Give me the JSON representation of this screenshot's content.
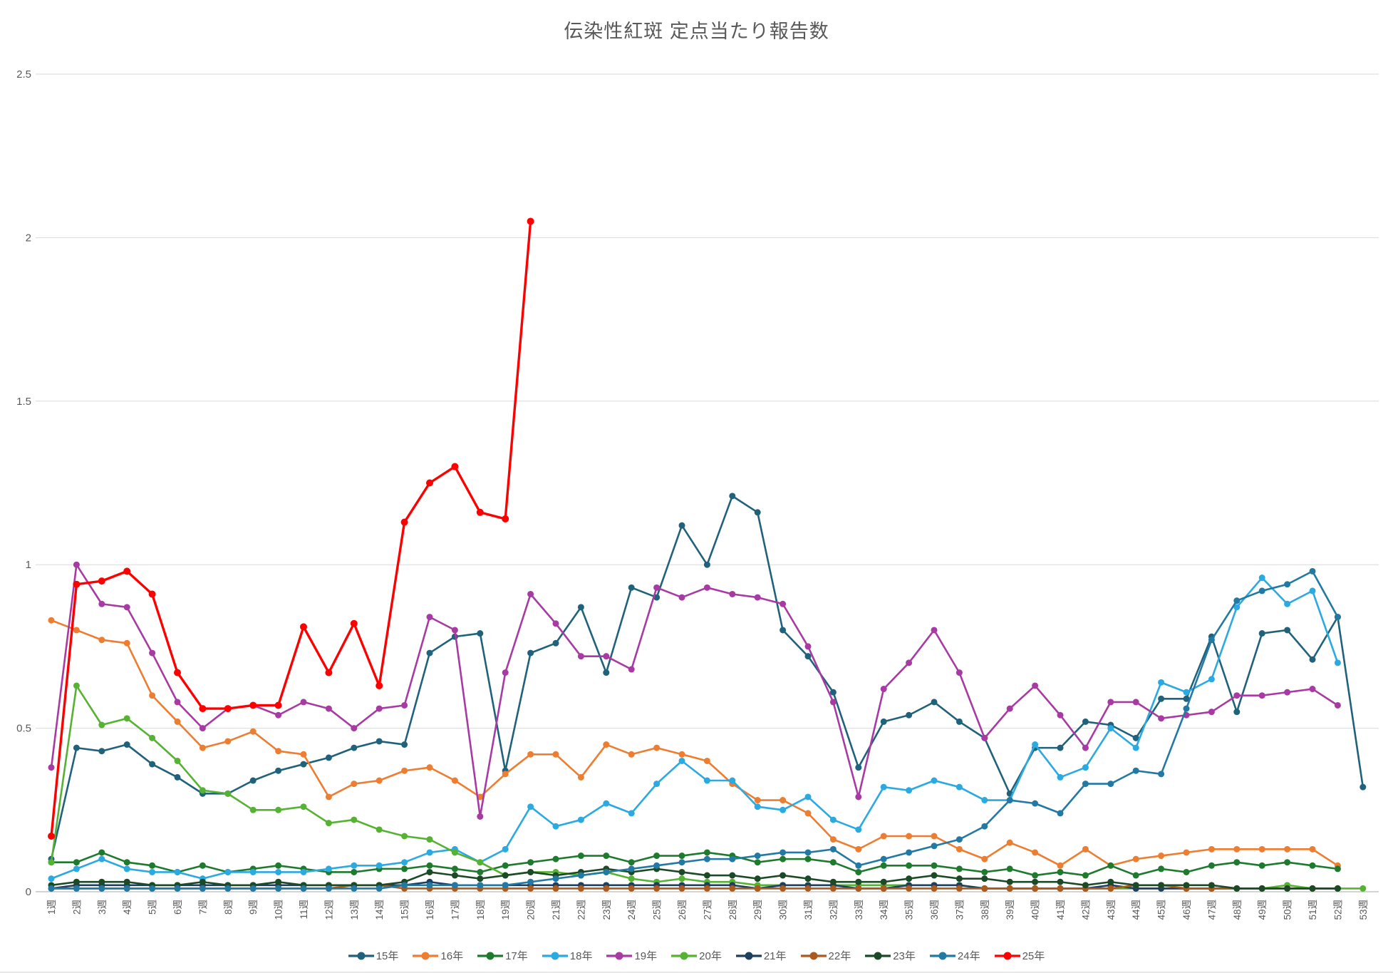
{
  "chart_data": {
    "type": "line",
    "title": "伝染性紅斑 定点当たり報告数",
    "xlabel": "",
    "ylabel": "",
    "ylim": [
      0,
      2.5
    ],
    "grid": true,
    "legend_position": "bottom",
    "y_ticks": [
      "0",
      "0.5",
      "1",
      "1.5",
      "2",
      "2.5"
    ],
    "x_labels": [
      "1週",
      "2週",
      "3週",
      "4週",
      "5週",
      "6週",
      "7週",
      "8週",
      "9週",
      "10週",
      "11週",
      "12週",
      "13週",
      "14週",
      "15週",
      "16週",
      "17週",
      "18週",
      "19週",
      "20週",
      "21週",
      "22週",
      "23週",
      "24週",
      "25週",
      "26週",
      "27週",
      "28週",
      "29週",
      "30週",
      "31週",
      "32週",
      "33週",
      "34週",
      "35週",
      "36週",
      "37週",
      "38週",
      "39週",
      "40週",
      "41週",
      "42週",
      "43週",
      "44週",
      "45週",
      "46週",
      "47週",
      "48週",
      "49週",
      "50週",
      "51週",
      "52週",
      "53週"
    ],
    "colors": {
      "grid": "#D9D9D9",
      "axis": "#C6C6C6",
      "text": "#595959"
    },
    "series": [
      {
        "name": "15年",
        "color": "#20627C",
        "values": [
          0.1,
          0.44,
          0.43,
          0.45,
          0.39,
          0.35,
          0.3,
          0.3,
          0.34,
          0.37,
          0.39,
          0.41,
          0.44,
          0.46,
          0.45,
          0.73,
          0.78,
          0.79,
          0.37,
          0.73,
          0.76,
          0.87,
          0.67,
          0.93,
          0.9,
          1.12,
          1.0,
          1.21,
          1.16,
          0.8,
          0.72,
          0.61,
          0.38,
          0.52,
          0.54,
          0.58,
          0.52,
          0.47,
          0.3,
          0.44,
          0.44,
          0.52,
          0.51,
          0.47,
          0.59,
          0.59,
          0.78,
          0.55,
          0.79,
          0.8,
          0.71,
          0.84,
          0.32
        ]
      },
      {
        "name": "16年",
        "color": "#ED7D31",
        "values": [
          0.83,
          0.8,
          0.77,
          0.76,
          0.6,
          0.52,
          0.44,
          0.46,
          0.49,
          0.43,
          0.42,
          0.29,
          0.33,
          0.34,
          0.37,
          0.38,
          0.34,
          0.29,
          0.36,
          0.42,
          0.42,
          0.35,
          0.45,
          0.42,
          0.44,
          0.42,
          0.4,
          0.33,
          0.28,
          0.28,
          0.24,
          0.16,
          0.13,
          0.17,
          0.17,
          0.17,
          0.13,
          0.1,
          0.15,
          0.12,
          0.08,
          0.13,
          0.08,
          0.1,
          0.11,
          0.12,
          0.13,
          0.13,
          0.13,
          0.13,
          0.13,
          0.08
        ]
      },
      {
        "name": "17年",
        "color": "#1E7A2D",
        "values": [
          0.09,
          0.09,
          0.12,
          0.09,
          0.08,
          0.06,
          0.08,
          0.06,
          0.07,
          0.08,
          0.07,
          0.06,
          0.06,
          0.07,
          0.07,
          0.08,
          0.07,
          0.06,
          0.08,
          0.09,
          0.1,
          0.11,
          0.11,
          0.09,
          0.11,
          0.11,
          0.12,
          0.11,
          0.09,
          0.1,
          0.1,
          0.09,
          0.06,
          0.08,
          0.08,
          0.08,
          0.07,
          0.06,
          0.07,
          0.05,
          0.06,
          0.05,
          0.08,
          0.05,
          0.07,
          0.06,
          0.08,
          0.09,
          0.08,
          0.09,
          0.08,
          0.07
        ]
      },
      {
        "name": "18年",
        "color": "#2BA9E1",
        "values": [
          0.04,
          0.07,
          0.1,
          0.07,
          0.06,
          0.06,
          0.04,
          0.06,
          0.06,
          0.06,
          0.06,
          0.07,
          0.08,
          0.08,
          0.09,
          0.12,
          0.13,
          0.09,
          0.13,
          0.26,
          0.2,
          0.22,
          0.27,
          0.24,
          0.33,
          0.4,
          0.34,
          0.34,
          0.26,
          0.25,
          0.29,
          0.22,
          0.19,
          0.32,
          0.31,
          0.34,
          0.32,
          0.28,
          0.28,
          0.45,
          0.35,
          0.38,
          0.5,
          0.44,
          0.64,
          0.61,
          0.65,
          0.87,
          0.96,
          0.88,
          0.92,
          0.7
        ]
      },
      {
        "name": "19年",
        "color": "#A83AA3",
        "values": [
          0.38,
          1.0,
          0.88,
          0.87,
          0.73,
          0.58,
          0.5,
          0.56,
          0.57,
          0.54,
          0.58,
          0.56,
          0.5,
          0.56,
          0.57,
          0.84,
          0.8,
          0.23,
          0.67,
          0.91,
          0.82,
          0.72,
          0.72,
          0.68,
          0.93,
          0.9,
          0.93,
          0.91,
          0.9,
          0.88,
          0.75,
          0.58,
          0.29,
          0.62,
          0.7,
          0.8,
          0.67,
          0.47,
          0.56,
          0.63,
          0.54,
          0.44,
          0.58,
          0.58,
          0.53,
          0.54,
          0.55,
          0.6,
          0.6,
          0.61,
          0.62,
          0.57
        ]
      },
      {
        "name": "20年",
        "color": "#56B232",
        "values": [
          0.09,
          0.63,
          0.51,
          0.53,
          0.47,
          0.4,
          0.31,
          0.3,
          0.25,
          0.25,
          0.26,
          0.21,
          0.22,
          0.19,
          0.17,
          0.16,
          0.12,
          0.09,
          0.05,
          0.06,
          0.06,
          0.05,
          0.06,
          0.04,
          0.03,
          0.04,
          0.03,
          0.03,
          0.02,
          0.02,
          0.02,
          0.02,
          0.02,
          0.02,
          0.02,
          0.02,
          0.02,
          0.01,
          0.01,
          0.01,
          0.01,
          0.01,
          0.01,
          0.01,
          0.01,
          0.01,
          0.01,
          0.01,
          0.01,
          0.02,
          0.01,
          0.01,
          0.01
        ]
      },
      {
        "name": "21年",
        "color": "#1F3F5F",
        "values": [
          0.01,
          0.02,
          0.02,
          0.02,
          0.02,
          0.02,
          0.02,
          0.02,
          0.02,
          0.02,
          0.02,
          0.02,
          0.02,
          0.02,
          0.02,
          0.03,
          0.02,
          0.02,
          0.02,
          0.02,
          0.02,
          0.02,
          0.02,
          0.02,
          0.02,
          0.02,
          0.02,
          0.02,
          0.01,
          0.02,
          0.02,
          0.02,
          0.01,
          0.01,
          0.02,
          0.02,
          0.02,
          0.01,
          0.01,
          0.01,
          0.01,
          0.01,
          0.02,
          0.01,
          0.01,
          0.01,
          0.01,
          0.01,
          0.01,
          0.01,
          0.01,
          0.01
        ]
      },
      {
        "name": "22年",
        "color": "#AC5A1E",
        "values": [
          0.01,
          0.01,
          0.01,
          0.01,
          0.01,
          0.01,
          0.01,
          0.01,
          0.01,
          0.01,
          0.01,
          0.01,
          0.02,
          0.02,
          0.01,
          0.01,
          0.01,
          0.01,
          0.01,
          0.01,
          0.01,
          0.01,
          0.01,
          0.01,
          0.01,
          0.01,
          0.01,
          0.01,
          0.01,
          0.01,
          0.01,
          0.01,
          0.01,
          0.01,
          0.01,
          0.01,
          0.01,
          0.01,
          0.01,
          0.01,
          0.01,
          0.01,
          0.01,
          0.02,
          0.02,
          0.01,
          0.01,
          0.01,
          0.01,
          0.01,
          0.01,
          0.01
        ]
      },
      {
        "name": "23年",
        "color": "#1C4A26",
        "values": [
          0.02,
          0.03,
          0.03,
          0.03,
          0.02,
          0.02,
          0.03,
          0.02,
          0.02,
          0.03,
          0.02,
          0.02,
          0.02,
          0.02,
          0.03,
          0.06,
          0.05,
          0.04,
          0.05,
          0.06,
          0.05,
          0.06,
          0.07,
          0.06,
          0.07,
          0.06,
          0.05,
          0.05,
          0.04,
          0.05,
          0.04,
          0.03,
          0.03,
          0.03,
          0.04,
          0.05,
          0.04,
          0.04,
          0.03,
          0.03,
          0.03,
          0.02,
          0.03,
          0.02,
          0.02,
          0.02,
          0.02,
          0.01,
          0.01,
          0.01,
          0.01,
          0.01
        ]
      },
      {
        "name": "24年",
        "color": "#2279A3",
        "values": [
          0.01,
          0.01,
          0.01,
          0.01,
          0.01,
          0.01,
          0.01,
          0.01,
          0.01,
          0.01,
          0.01,
          0.01,
          0.01,
          0.01,
          0.02,
          0.02,
          0.02,
          0.02,
          0.02,
          0.03,
          0.04,
          0.05,
          0.06,
          0.07,
          0.08,
          0.09,
          0.1,
          0.1,
          0.11,
          0.12,
          0.12,
          0.13,
          0.08,
          0.1,
          0.12,
          0.14,
          0.16,
          0.2,
          0.28,
          0.27,
          0.24,
          0.33,
          0.33,
          0.37,
          0.36,
          0.56,
          0.77,
          0.89,
          0.92,
          0.94,
          0.98,
          0.84
        ]
      },
      {
        "name": "25年",
        "color": "#FF0000",
        "values": [
          0.17,
          0.94,
          0.95,
          0.98,
          0.91,
          0.67,
          0.56,
          0.56,
          0.57,
          0.57,
          0.81,
          0.67,
          0.82,
          0.63,
          1.13,
          1.25,
          1.3,
          1.16,
          1.14,
          2.05
        ]
      }
    ]
  }
}
